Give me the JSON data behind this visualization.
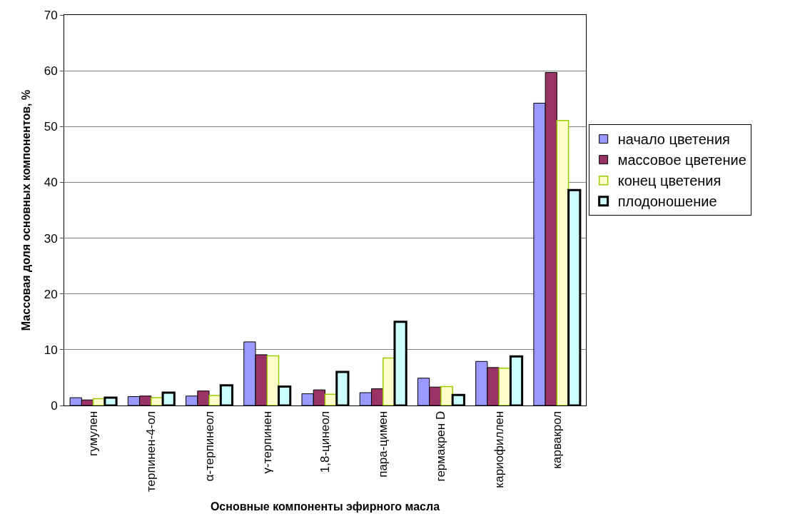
{
  "chart_data": {
    "type": "bar",
    "xlabel": "Основные компоненты эфирного масла",
    "ylabel": "Массовая доля основных компонентов, %",
    "categories": [
      "гумулен",
      "терпинен-4-ол",
      "α-терпинеол",
      "γ-терпинен",
      "1,8-цинеол",
      "пара-цимен",
      "гермакрен D",
      "кариофиллен",
      "карвакрол"
    ],
    "series": [
      {
        "name": "начало цветения",
        "color": "#9999ff",
        "values": [
          1.4,
          1.6,
          1.7,
          11.4,
          2.1,
          2.3,
          4.9,
          7.9,
          54.2
        ]
      },
      {
        "name": "массовое цветение",
        "color": "#993366",
        "values": [
          1.0,
          1.7,
          2.6,
          9.1,
          2.8,
          3.0,
          3.3,
          6.8,
          59.7
        ]
      },
      {
        "name": "конец цветения",
        "color": "#ffffcc",
        "values": [
          1.2,
          1.4,
          1.8,
          8.9,
          2.0,
          8.5,
          3.4,
          6.7,
          51.1
        ]
      },
      {
        "name": "плодоношение",
        "color": "#ccffff",
        "values": [
          1.4,
          2.3,
          3.6,
          3.4,
          6.0,
          15.0,
          1.9,
          8.8,
          38.6
        ]
      }
    ],
    "ylim": [
      0,
      70
    ],
    "yticks": [
      0,
      10,
      20,
      30,
      40,
      50,
      60,
      70
    ],
    "grid": "y",
    "legend": "right"
  }
}
